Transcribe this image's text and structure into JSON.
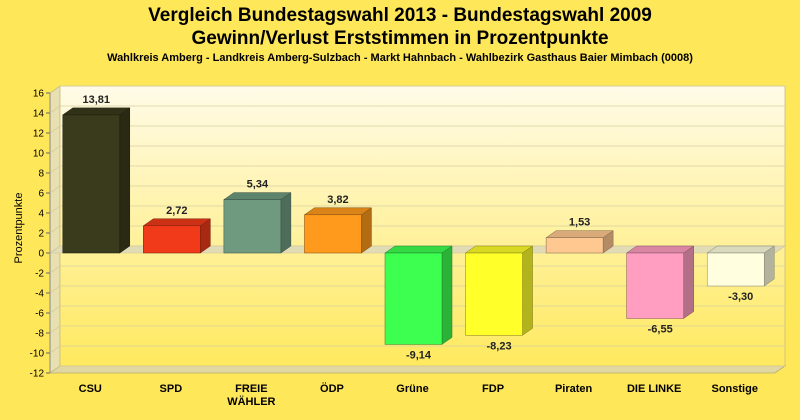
{
  "chart_data": {
    "type": "bar",
    "title_line1": "Vergleich Bundestagswahl 2013 - Bundestagswahl 2009",
    "title_line2": "Gewinn/Verlust Erststimmen in Prozentpunkte",
    "subtitle": "Wahlkreis Amberg - Landkreis Amberg-Sulzbach - Markt Hahnbach - Wahlbezirk Gasthaus Baier Mimbach (0008)",
    "ylabel": "Prozentpunkte",
    "ylim": [
      -12,
      16
    ],
    "yticks": [
      "16",
      "14",
      "12",
      "10",
      "8",
      "6",
      "4",
      "2",
      "0",
      "-2",
      "-4",
      "-6",
      "-8",
      "-10",
      "-12"
    ],
    "ytick_values": [
      16,
      14,
      12,
      10,
      8,
      6,
      4,
      2,
      0,
      -2,
      -4,
      -6,
      -8,
      -10,
      -12
    ],
    "grid": true,
    "categories": [
      "CSU",
      "SPD",
      "FREIE WÄHLER",
      "ÖDP",
      "Grüne",
      "FDP",
      "Piraten",
      "DIE LINKE",
      "Sonstige"
    ],
    "values": [
      13.81,
      2.72,
      5.34,
      3.82,
      -9.14,
      -8.23,
      1.53,
      -6.55,
      -3.3
    ],
    "value_labels": [
      "13,81",
      "2,72",
      "5,34",
      "3,82",
      "-9,14",
      "-8,23",
      "1,53",
      "-6,55",
      "-3,30"
    ],
    "colors": [
      "#3a3a1c",
      "#f03a1a",
      "#6f9a80",
      "#ff9a1c",
      "#3dff50",
      "#ffff2a",
      "#ffc890",
      "#ff9ec0",
      "#ffffe0"
    ]
  }
}
